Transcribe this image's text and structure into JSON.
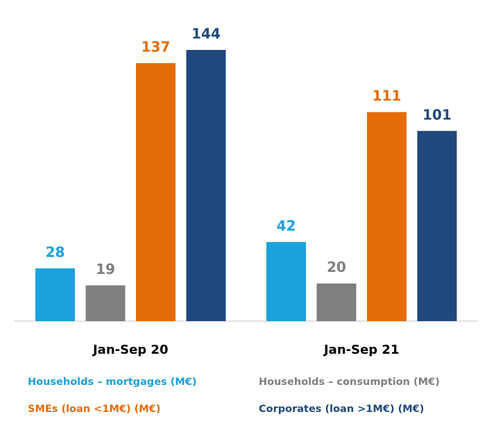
{
  "chart_data": {
    "type": "bar",
    "categories": [
      "Jan-Sep 20",
      "Jan-Sep 21"
    ],
    "series": [
      {
        "name": "Households – mortgages (M€)",
        "color": "#1ba1db",
        "values": [
          28,
          42
        ]
      },
      {
        "name": "Households – consumption (M€)",
        "color": "#7f7f7f",
        "values": [
          19,
          20
        ]
      },
      {
        "name": "SMEs (loan <1M€) (M€)",
        "color": "#e46c0a",
        "values": [
          137,
          111
        ]
      },
      {
        "name": "Corporates (loan >1M€) (M€)",
        "color": "#1f497d",
        "values": [
          144,
          101
        ]
      }
    ],
    "legend": "bottom"
  }
}
